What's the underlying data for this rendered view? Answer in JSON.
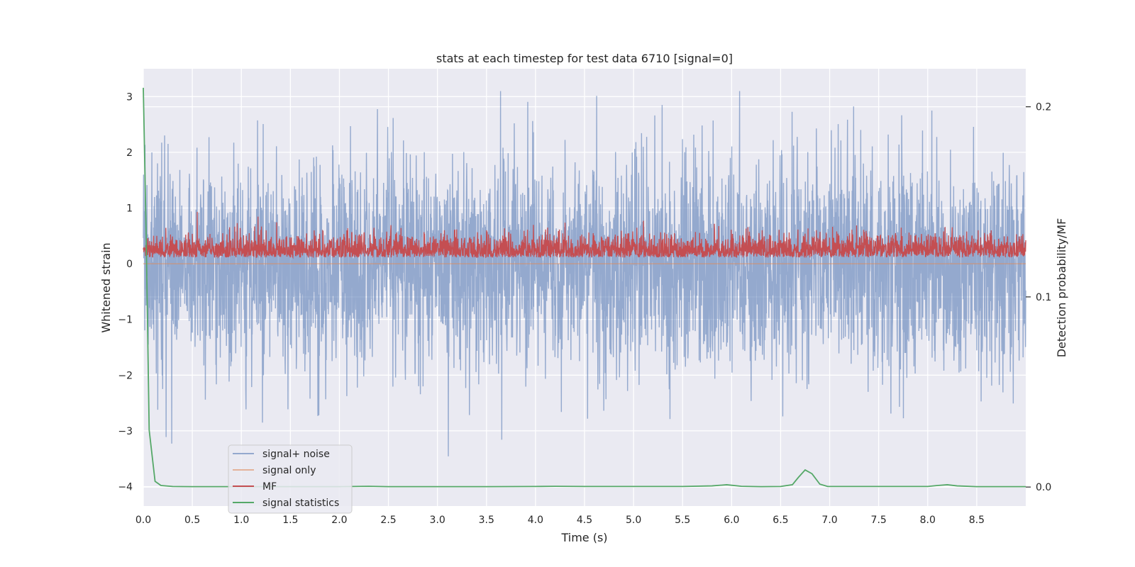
{
  "chart_data": {
    "type": "line",
    "title": "stats at each timestep for test data 6710 [signal=0]",
    "xlabel": "Time (s)",
    "ylabel": "Whitened strain",
    "y2label": "Detection probability/MF",
    "xlim": [
      0.0,
      9.0
    ],
    "ylim": [
      -4.35,
      3.5
    ],
    "y2lim": [
      -0.01,
      0.22
    ],
    "xticks": [
      "0.0",
      "0.5",
      "1.0",
      "1.5",
      "2.0",
      "2.5",
      "3.0",
      "3.5",
      "4.0",
      "4.5",
      "5.0",
      "5.5",
      "6.0",
      "6.5",
      "7.0",
      "7.5",
      "8.0",
      "8.5"
    ],
    "yticks": [
      "−4",
      "−3",
      "−2",
      "−1",
      "0",
      "1",
      "2",
      "3"
    ],
    "y2ticks": [
      "0.0",
      "0.1",
      "0.2"
    ],
    "grid": true,
    "legend_position": "lower-left",
    "series": [
      {
        "name": "signal+ noise",
        "axis": "left",
        "color": "#4c72b0",
        "kind": "noise",
        "x_range": [
          0.0,
          9.0
        ],
        "samples": 3600,
        "y_min": -4.0,
        "y_max": 3.1,
        "approx_sigma": 1.0
      },
      {
        "name": "signal only",
        "axis": "left",
        "color": "#dd8452",
        "x": [
          0.0,
          9.0
        ],
        "values": [
          0.0,
          0.0
        ]
      },
      {
        "name": "MF",
        "axis": "left",
        "color": "#c44e52",
        "kind": "noise",
        "x_range": [
          0.0,
          9.0
        ],
        "samples": 3600,
        "y_min": 0.0,
        "y_max": 1.0,
        "approx_mean": 0.25
      },
      {
        "name": "signal statistics",
        "axis": "right",
        "color": "#55a868",
        "x": [
          0.0,
          0.03,
          0.06,
          0.12,
          0.18,
          0.3,
          0.5,
          1.0,
          1.5,
          2.0,
          2.3,
          2.5,
          3.0,
          3.5,
          4.0,
          4.2,
          4.5,
          5.0,
          5.5,
          5.8,
          5.95,
          6.1,
          6.3,
          6.5,
          6.62,
          6.68,
          6.75,
          6.82,
          6.9,
          6.98,
          7.1,
          7.5,
          8.0,
          8.1,
          8.2,
          8.3,
          8.5,
          9.0
        ],
        "values": [
          0.21,
          0.13,
          0.03,
          0.003,
          0.0008,
          0.0003,
          0.0002,
          0.0002,
          0.0002,
          0.0002,
          0.0004,
          0.0002,
          0.0002,
          0.0002,
          0.0003,
          0.0004,
          0.0003,
          0.0003,
          0.0003,
          0.0006,
          0.0012,
          0.0004,
          0.0002,
          0.0003,
          0.0012,
          0.005,
          0.009,
          0.007,
          0.0015,
          0.0003,
          0.0003,
          0.0003,
          0.0003,
          0.0008,
          0.0012,
          0.0006,
          0.0002,
          0.0002
        ]
      }
    ]
  }
}
